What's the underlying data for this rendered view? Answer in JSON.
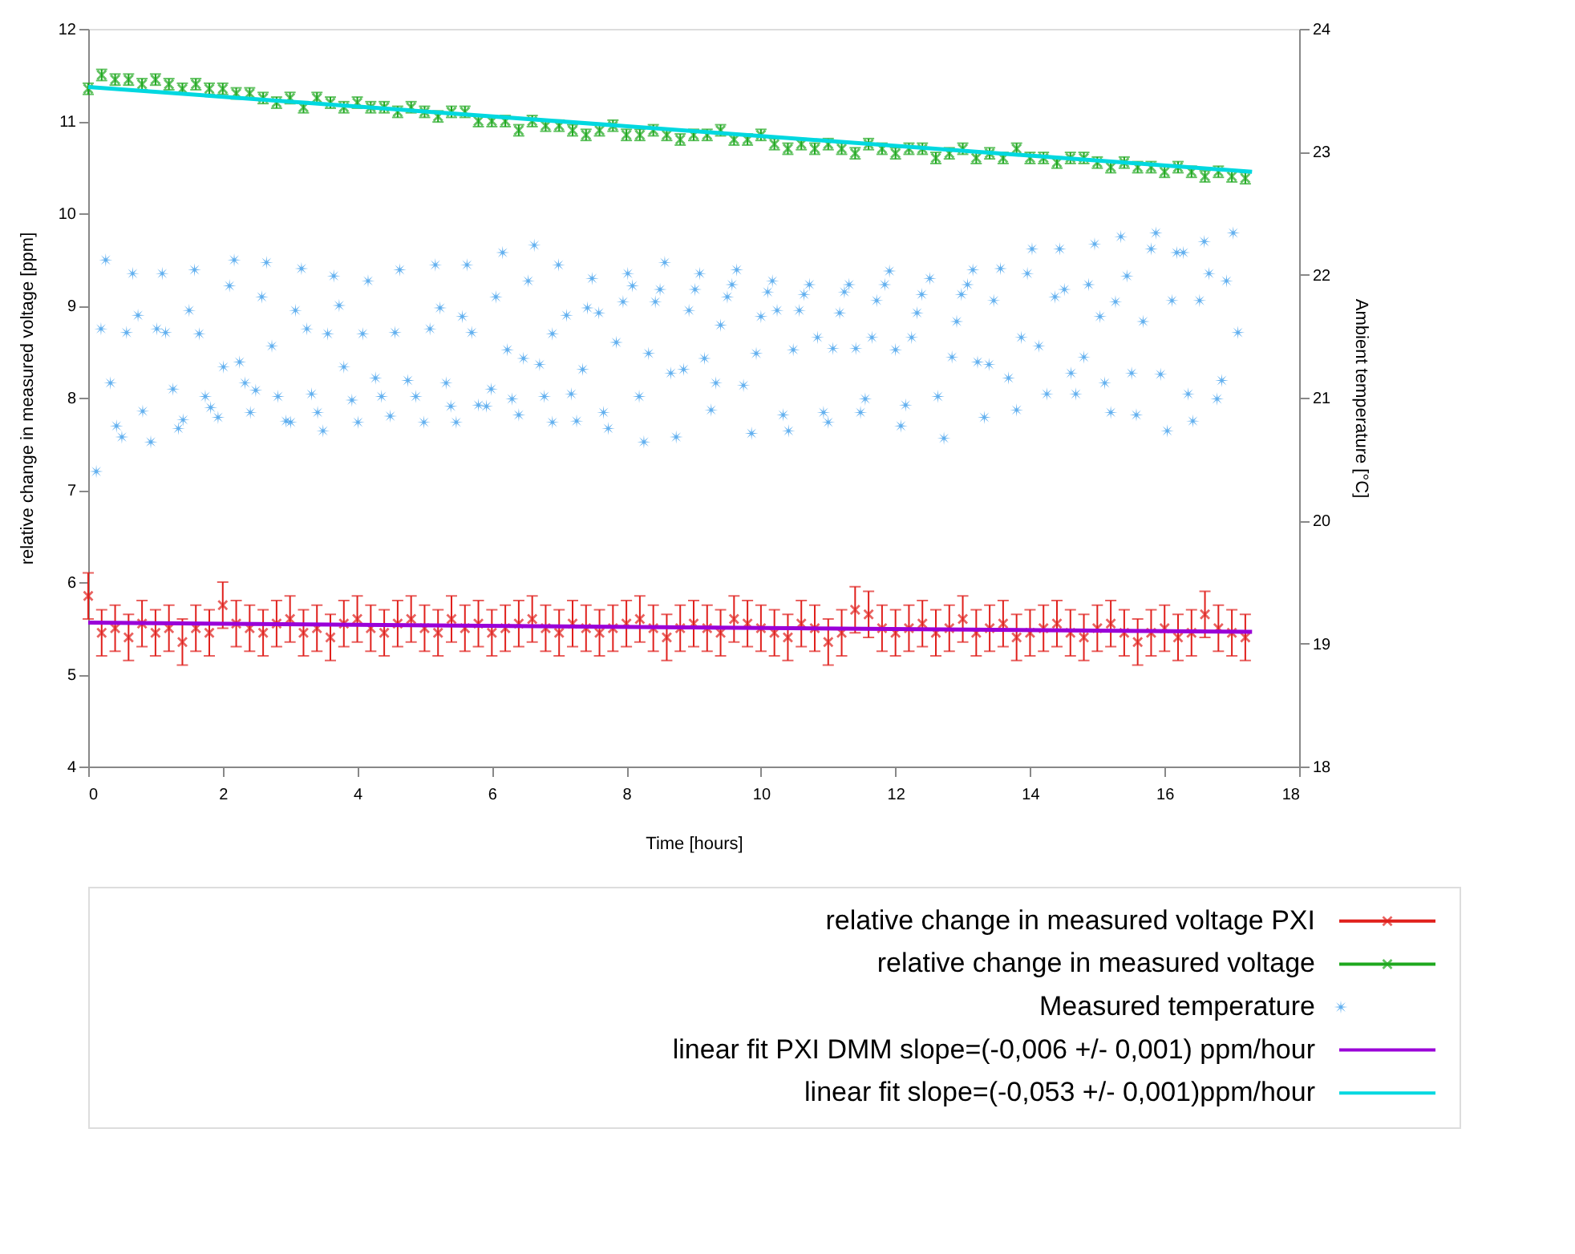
{
  "chart_data": {
    "type": "scatter",
    "xlabel": "Time [hours]",
    "ylabel": "relative change in measured voltage [ppm]",
    "y2label": "Ambient temperature [°C]",
    "xlim": [
      0,
      18
    ],
    "xticks": [
      0,
      2,
      4,
      6,
      8,
      10,
      12,
      14,
      16,
      18
    ],
    "ylim": [
      4,
      12
    ],
    "yticks": [
      4,
      5,
      6,
      7,
      8,
      9,
      10,
      11,
      12
    ],
    "y2lim": [
      18,
      24
    ],
    "y2ticks": [
      18,
      19,
      20,
      21,
      22,
      23,
      24
    ],
    "grid": false,
    "legend": "bottom right",
    "series": [
      {
        "name": "relative change in measured voltage PXI",
        "marker": "cross",
        "color": "#e0201c",
        "x": [
          0,
          0.2,
          0.4,
          0.6,
          0.8,
          1,
          1.2,
          1.4,
          1.6,
          1.8,
          2,
          2.2,
          2.4,
          2.6,
          2.8,
          3,
          3.2,
          3.4,
          3.6,
          3.8,
          4,
          4.2,
          4.4,
          4.6,
          4.8,
          5,
          5.2,
          5.4,
          5.6,
          5.8,
          6,
          6.2,
          6.4,
          6.6,
          6.8,
          7,
          7.2,
          7.4,
          7.6,
          7.8,
          8,
          8.2,
          8.4,
          8.6,
          8.8,
          9,
          9.2,
          9.4,
          9.6,
          9.8,
          10,
          10.2,
          10.4,
          10.6,
          10.8,
          11,
          11.2,
          11.4,
          11.6,
          11.8,
          12,
          12.2,
          12.4,
          12.6,
          12.8,
          13,
          13.2,
          13.4,
          13.6,
          13.8,
          14,
          14.2,
          14.4,
          14.6,
          14.8,
          15,
          15.2,
          15.4,
          15.6,
          15.8,
          16,
          16.2,
          16.4,
          16.6,
          16.8,
          17,
          17.2
        ],
        "values": [
          5.85,
          5.45,
          5.5,
          5.4,
          5.55,
          5.45,
          5.5,
          5.35,
          5.5,
          5.45,
          5.75,
          5.55,
          5.5,
          5.45,
          5.55,
          5.6,
          5.45,
          5.5,
          5.4,
          5.55,
          5.6,
          5.5,
          5.45,
          5.55,
          5.6,
          5.5,
          5.45,
          5.6,
          5.5,
          5.55,
          5.45,
          5.5,
          5.55,
          5.6,
          5.5,
          5.45,
          5.55,
          5.5,
          5.45,
          5.5,
          5.55,
          5.6,
          5.5,
          5.4,
          5.5,
          5.55,
          5.5,
          5.45,
          5.6,
          5.55,
          5.5,
          5.45,
          5.4,
          5.55,
          5.5,
          5.35,
          5.45,
          5.7,
          5.65,
          5.5,
          5.45,
          5.5,
          5.55,
          5.45,
          5.5,
          5.6,
          5.45,
          5.5,
          5.55,
          5.4,
          5.45,
          5.5,
          5.55,
          5.45,
          5.4,
          5.5,
          5.55,
          5.45,
          5.35,
          5.45,
          5.5,
          5.4,
          5.45,
          5.65,
          5.5,
          5.45,
          5.4
        ],
        "errors": [
          0.25,
          0.25,
          0.25,
          0.25,
          0.25,
          0.25,
          0.25,
          0.25,
          0.25,
          0.25,
          0.25,
          0.25,
          0.25,
          0.25,
          0.25,
          0.25,
          0.25,
          0.25,
          0.25,
          0.25,
          0.25,
          0.25,
          0.25,
          0.25,
          0.25,
          0.25,
          0.25,
          0.25,
          0.25,
          0.25,
          0.25,
          0.25,
          0.25,
          0.25,
          0.25,
          0.25,
          0.25,
          0.25,
          0.25,
          0.25,
          0.25,
          0.25,
          0.25,
          0.25,
          0.25,
          0.25,
          0.25,
          0.25,
          0.25,
          0.25,
          0.25,
          0.25,
          0.25,
          0.25,
          0.25,
          0.25,
          0.25,
          0.25,
          0.25,
          0.25,
          0.25,
          0.25,
          0.25,
          0.25,
          0.25,
          0.25,
          0.25,
          0.25,
          0.25,
          0.25,
          0.25,
          0.25,
          0.25,
          0.25,
          0.25,
          0.25,
          0.25,
          0.25,
          0.25,
          0.25,
          0.25,
          0.25,
          0.25,
          0.25,
          0.25,
          0.25,
          0.25
        ]
      },
      {
        "name": "relative change in measured voltage",
        "marker": "cross",
        "color": "#1ea81e",
        "x": [
          0,
          0.2,
          0.4,
          0.6,
          0.8,
          1,
          1.2,
          1.4,
          1.6,
          1.8,
          2,
          2.2,
          2.4,
          2.6,
          2.8,
          3,
          3.2,
          3.4,
          3.6,
          3.8,
          4,
          4.2,
          4.4,
          4.6,
          4.8,
          5,
          5.2,
          5.4,
          5.6,
          5.8,
          6,
          6.2,
          6.4,
          6.6,
          6.8,
          7,
          7.2,
          7.4,
          7.6,
          7.8,
          8,
          8.2,
          8.4,
          8.6,
          8.8,
          9,
          9.2,
          9.4,
          9.6,
          9.8,
          10,
          10.2,
          10.4,
          10.6,
          10.8,
          11,
          11.2,
          11.4,
          11.6,
          11.8,
          12,
          12.2,
          12.4,
          12.6,
          12.8,
          13,
          13.2,
          13.4,
          13.6,
          13.8,
          14,
          14.2,
          14.4,
          14.6,
          14.8,
          15,
          15.2,
          15.4,
          15.6,
          15.8,
          16,
          16.2,
          16.4,
          16.6,
          16.8,
          17,
          17.2
        ],
        "values": [
          11.35,
          11.5,
          11.45,
          11.45,
          11.4,
          11.45,
          11.4,
          11.35,
          11.4,
          11.35,
          11.35,
          11.3,
          11.3,
          11.25,
          11.2,
          11.25,
          11.15,
          11.25,
          11.2,
          11.15,
          11.2,
          11.15,
          11.15,
          11.1,
          11.15,
          11.1,
          11.05,
          11.1,
          11.1,
          11.0,
          11.0,
          11.0,
          10.9,
          11.0,
          10.95,
          10.95,
          10.9,
          10.85,
          10.9,
          10.95,
          10.85,
          10.85,
          10.9,
          10.85,
          10.8,
          10.85,
          10.85,
          10.9,
          10.8,
          10.8,
          10.85,
          10.75,
          10.7,
          10.75,
          10.7,
          10.75,
          10.7,
          10.65,
          10.75,
          10.7,
          10.65,
          10.7,
          10.7,
          10.6,
          10.65,
          10.7,
          10.6,
          10.65,
          10.6,
          10.7,
          10.6,
          10.6,
          10.55,
          10.6,
          10.6,
          10.55,
          10.5,
          10.55,
          10.5,
          10.5,
          10.45,
          10.5,
          10.45,
          10.4,
          10.45,
          10.4,
          10.38
        ],
        "errors": [
          0.06,
          0.06,
          0.06,
          0.06,
          0.06,
          0.06,
          0.06,
          0.06,
          0.06,
          0.06,
          0.06,
          0.06,
          0.06,
          0.06,
          0.06,
          0.06,
          0.06,
          0.06,
          0.06,
          0.06,
          0.06,
          0.06,
          0.06,
          0.06,
          0.06,
          0.06,
          0.06,
          0.06,
          0.06,
          0.06,
          0.06,
          0.06,
          0.06,
          0.06,
          0.06,
          0.06,
          0.06,
          0.06,
          0.06,
          0.06,
          0.06,
          0.06,
          0.06,
          0.06,
          0.06,
          0.06,
          0.06,
          0.06,
          0.06,
          0.06,
          0.06,
          0.06,
          0.06,
          0.06,
          0.06,
          0.06,
          0.06,
          0.06,
          0.06,
          0.06,
          0.06,
          0.06,
          0.06,
          0.06,
          0.06,
          0.06,
          0.06,
          0.06,
          0.06,
          0.06,
          0.06,
          0.06,
          0.06,
          0.06,
          0.06,
          0.06,
          0.06,
          0.06,
          0.06,
          0.06,
          0.06,
          0.06,
          0.06,
          0.06,
          0.06,
          0.06,
          0.06
        ]
      },
      {
        "name": "Measured temperature",
        "marker": "star",
        "axis": "y2",
        "color": "#1f8fe8",
        "x": [
          0.12,
          0.19,
          0.26,
          0.33,
          0.42,
          0.5,
          0.57,
          0.66,
          0.74,
          0.81,
          0.93,
          1.02,
          1.1,
          1.15,
          1.26,
          1.34,
          1.41,
          1.5,
          1.58,
          1.65,
          1.74,
          1.82,
          1.93,
          2.01,
          2.1,
          2.17,
          2.25,
          2.33,
          2.41,
          2.49,
          2.58,
          2.65,
          2.73,
          2.82,
          2.94,
          3.01,
          3.08,
          3.17,
          3.25,
          3.32,
          3.41,
          3.49,
          3.56,
          3.65,
          3.73,
          3.8,
          3.92,
          4.01,
          4.08,
          4.16,
          4.27,
          4.36,
          4.49,
          4.56,
          4.63,
          4.75,
          4.87,
          4.99,
          5.08,
          5.16,
          5.23,
          5.32,
          5.39,
          5.47,
          5.56,
          5.63,
          5.7,
          5.8,
          5.92,
          5.99,
          6.06,
          6.16,
          6.23,
          6.3,
          6.4,
          6.47,
          6.54,
          6.63,
          6.71,
          6.78,
          6.9,
          6.9,
          6.99,
          7.11,
          7.18,
          7.26,
          7.35,
          7.42,
          7.49,
          7.59,
          7.66,
          7.73,
          7.85,
          7.95,
          8.02,
          8.09,
          8.19,
          8.26,
          8.33,
          8.43,
          8.5,
          8.57,
          8.66,
          8.74,
          8.85,
          8.93,
          9.02,
          9.09,
          9.16,
          9.26,
          9.33,
          9.4,
          9.5,
          9.57,
          9.64,
          9.74,
          9.86,
          9.93,
          10,
          10.1,
          10.17,
          10.24,
          10.33,
          10.41,
          10.48,
          10.57,
          10.64,
          10.72,
          10.84,
          10.93,
          11,
          11.07,
          11.17,
          11.24,
          11.31,
          11.41,
          11.48,
          11.55,
          11.65,
          11.72,
          11.84,
          11.91,
          12,
          12.08,
          12.15,
          12.24,
          12.32,
          12.39,
          12.51,
          12.63,
          12.72,
          12.84,
          12.91,
          12.98,
          13.07,
          13.15,
          13.22,
          13.32,
          13.39,
          13.46,
          13.56,
          13.68,
          13.8,
          13.87,
          13.96,
          14.03,
          14.13,
          14.25,
          14.37,
          14.44,
          14.51,
          14.61,
          14.68,
          14.8,
          14.87,
          14.96,
          15.04,
          15.11,
          15.2,
          15.27,
          15.35,
          15.44,
          15.51,
          15.58,
          15.68,
          15.8,
          15.87,
          15.94,
          16.04,
          16.11,
          16.18,
          16.28,
          16.35,
          16.42,
          16.52,
          16.59,
          16.66,
          16.78,
          16.85,
          16.92,
          17.02,
          17.09
        ],
        "values": [
          20.4,
          21.56,
          22.12,
          21.12,
          20.77,
          20.68,
          21.53,
          22.01,
          21.67,
          20.89,
          20.64,
          21.56,
          22.01,
          21.53,
          21.07,
          20.75,
          20.82,
          21.71,
          22.04,
          21.52,
          21.01,
          20.92,
          20.84,
          21.25,
          21.91,
          22.12,
          21.29,
          21.12,
          20.88,
          21.06,
          21.82,
          22.1,
          21.42,
          21.01,
          20.81,
          20.8,
          21.71,
          22.05,
          21.56,
          21.03,
          20.88,
          20.73,
          21.52,
          21.99,
          21.75,
          21.25,
          20.98,
          20.8,
          21.52,
          21.95,
          21.16,
          21.01,
          20.85,
          21.53,
          22.04,
          21.14,
          21.01,
          20.8,
          21.56,
          22.08,
          21.73,
          21.12,
          20.93,
          20.8,
          21.66,
          22.08,
          21.53,
          20.94,
          20.93,
          21.07,
          21.82,
          22.18,
          21.39,
          20.99,
          20.86,
          21.32,
          21.95,
          22.24,
          21.27,
          21.01,
          21.52,
          20.8,
          22.08,
          21.67,
          21.03,
          20.81,
          21.23,
          21.73,
          21.97,
          21.69,
          20.88,
          20.75,
          21.45,
          21.78,
          22.01,
          21.91,
          21.01,
          20.64,
          21.36,
          21.78,
          21.88,
          22.1,
          21.2,
          20.68,
          21.23,
          21.71,
          21.88,
          22.01,
          21.32,
          20.9,
          21.12,
          21.59,
          21.82,
          21.92,
          22.04,
          21.1,
          20.71,
          21.36,
          21.66,
          21.86,
          21.95,
          21.71,
          20.86,
          20.73,
          21.39,
          21.71,
          21.84,
          21.92,
          21.49,
          20.88,
          20.8,
          21.4,
          21.69,
          21.86,
          21.92,
          21.4,
          20.88,
          20.99,
          21.49,
          21.79,
          21.92,
          22.03,
          21.39,
          20.77,
          20.94,
          21.49,
          21.69,
          21.84,
          21.97,
          21.01,
          20.67,
          21.33,
          21.62,
          21.84,
          21.92,
          22.04,
          21.29,
          20.84,
          21.27,
          21.79,
          22.05,
          21.16,
          20.9,
          21.49,
          22.01,
          22.21,
          21.42,
          21.03,
          21.82,
          22.21,
          21.88,
          21.2,
          21.03,
          21.33,
          21.92,
          22.25,
          21.66,
          21.12,
          20.88,
          21.78,
          22.31,
          21.99,
          21.2,
          20.86,
          21.62,
          22.21,
          22.34,
          21.19,
          20.73,
          21.79,
          22.18,
          22.18,
          21.03,
          20.81,
          21.79,
          22.27,
          22.01,
          20.99,
          21.14,
          21.95,
          22.34,
          21.53
        ]
      },
      {
        "name": "linear fit PXI DMM slope=(-0,006 +/- 0,001) ppm/hour",
        "type": "line",
        "color": "#9a00d8",
        "x": [
          0,
          17.3
        ],
        "values": [
          5.56,
          5.46
        ]
      },
      {
        "name": "linear fit slope=(-0,053 +/- 0,001)ppm/hour",
        "type": "line",
        "color": "#00d8e0",
        "x": [
          0,
          17.3
        ],
        "values": [
          11.37,
          10.45
        ]
      }
    ]
  }
}
